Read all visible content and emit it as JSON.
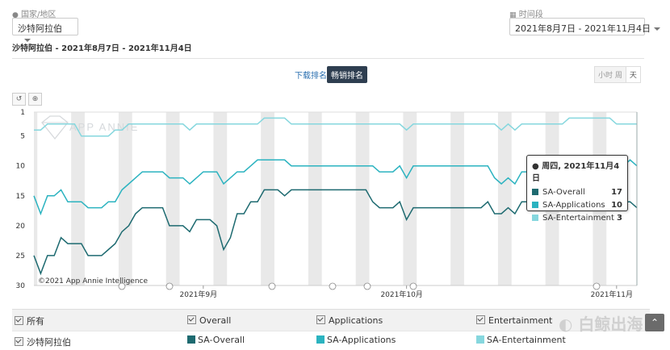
{
  "filters": {
    "country_label": "国家/地区",
    "country_value": "沙特阿拉伯",
    "period_label": "时间段",
    "period_value": "2021年8月7日 - 2021年11月4日"
  },
  "subtitle": "沙特阿拉伯 - 2021年8月7日 - 2021年11月4日",
  "tabs": {
    "downloads": "下载排名",
    "grossing": "畅销排名"
  },
  "granularity": {
    "hour": "小时",
    "week": "周",
    "day": "天"
  },
  "watermark": "APP ANNIE",
  "copyright": "©2021 App Annie Intelligence",
  "tooltip": {
    "title": "周四, 2021年11月4日",
    "rows": [
      {
        "name": "SA-Overall",
        "value": "17",
        "color": "#1d6a70"
      },
      {
        "name": "SA-Applications",
        "value": "10",
        "color": "#2bb3c0"
      },
      {
        "name": "SA-Entertainment",
        "value": "3",
        "color": "#86d7de"
      }
    ]
  },
  "legend": {
    "all": "所有",
    "country": "沙特阿拉伯",
    "groups": [
      "Overall",
      "Applications",
      "Entertainment"
    ],
    "series": [
      "SA-Overall",
      "SA-Applications",
      "SA-Entertainment"
    ]
  },
  "logo_text": "白鲸出海",
  "chart_data": {
    "type": "line",
    "y_reversed": true,
    "ylim": [
      1,
      30
    ],
    "y_ticks": [
      "1",
      "5",
      "10",
      "15",
      "20",
      "25",
      "30"
    ],
    "x_ticks": [
      "2021年9月",
      "2021年10月",
      "2021年11月"
    ],
    "x": [
      "2021-08-07",
      "2021-08-08",
      "2021-08-09",
      "2021-08-10",
      "2021-08-11",
      "2021-08-12",
      "2021-08-13",
      "2021-08-14",
      "2021-08-15",
      "2021-08-16",
      "2021-08-17",
      "2021-08-18",
      "2021-08-19",
      "2021-08-20",
      "2021-08-21",
      "2021-08-22",
      "2021-08-23",
      "2021-08-24",
      "2021-08-25",
      "2021-08-26",
      "2021-08-27",
      "2021-08-28",
      "2021-08-29",
      "2021-08-30",
      "2021-08-31",
      "2021-09-01",
      "2021-09-02",
      "2021-09-03",
      "2021-09-04",
      "2021-09-05",
      "2021-09-06",
      "2021-09-07",
      "2021-09-08",
      "2021-09-09",
      "2021-09-10",
      "2021-09-11",
      "2021-09-12",
      "2021-09-13",
      "2021-09-14",
      "2021-09-15",
      "2021-09-16",
      "2021-09-17",
      "2021-09-18",
      "2021-09-19",
      "2021-09-20",
      "2021-09-21",
      "2021-09-22",
      "2021-09-23",
      "2021-09-24",
      "2021-09-25",
      "2021-09-26",
      "2021-09-27",
      "2021-09-28",
      "2021-09-29",
      "2021-09-30",
      "2021-10-01",
      "2021-10-02",
      "2021-10-03",
      "2021-10-04",
      "2021-10-05",
      "2021-10-06",
      "2021-10-07",
      "2021-10-08",
      "2021-10-09",
      "2021-10-10",
      "2021-10-11",
      "2021-10-12",
      "2021-10-13",
      "2021-10-14",
      "2021-10-15",
      "2021-10-16",
      "2021-10-17",
      "2021-10-18",
      "2021-10-19",
      "2021-10-20",
      "2021-10-21",
      "2021-10-22",
      "2021-10-23",
      "2021-10-24",
      "2021-10-25",
      "2021-10-26",
      "2021-10-27",
      "2021-10-28",
      "2021-10-29",
      "2021-10-30",
      "2021-10-31",
      "2021-11-01",
      "2021-11-02",
      "2021-11-03",
      "2021-11-04"
    ],
    "series": [
      {
        "name": "SA-Overall",
        "color": "#1d6a70",
        "values": [
          25,
          28,
          25,
          25,
          22,
          23,
          23,
          23,
          25,
          25,
          25,
          24,
          23,
          21,
          20,
          18,
          17,
          17,
          17,
          17,
          20,
          20,
          20,
          21,
          19,
          19,
          19,
          20,
          24,
          22,
          18,
          18,
          16,
          16,
          14,
          14,
          14,
          15,
          14,
          14,
          14,
          14,
          14,
          14,
          14,
          14,
          14,
          14,
          14,
          14,
          16,
          17,
          17,
          17,
          16,
          19,
          17,
          17,
          17,
          17,
          17,
          17,
          17,
          17,
          17,
          17,
          17,
          16,
          18,
          18,
          17,
          18,
          16,
          16,
          15,
          16,
          16,
          16,
          16,
          16,
          16,
          16,
          16,
          16,
          16,
          16,
          16,
          16,
          16,
          17
        ]
      },
      {
        "name": "SA-Applications",
        "color": "#2bb3c0",
        "values": [
          15,
          18,
          15,
          15,
          14,
          16,
          16,
          16,
          17,
          17,
          17,
          16,
          16,
          14,
          13,
          12,
          11,
          11,
          11,
          11,
          12,
          12,
          12,
          13,
          12,
          11,
          11,
          11,
          13,
          12,
          11,
          11,
          10,
          9,
          9,
          9,
          9,
          9,
          10,
          10,
          10,
          10,
          10,
          10,
          10,
          10,
          10,
          10,
          10,
          10,
          10,
          11,
          11,
          11,
          10,
          12,
          10,
          10,
          10,
          10,
          10,
          10,
          10,
          10,
          10,
          10,
          10,
          10,
          12,
          13,
          12,
          13,
          11,
          11,
          10,
          10,
          10,
          10,
          10,
          10,
          10,
          10,
          10,
          10,
          10,
          10,
          10,
          10,
          9,
          10
        ]
      },
      {
        "name": "SA-Entertainment",
        "color": "#86d7de",
        "values": [
          4,
          4,
          3,
          3,
          3,
          3,
          3,
          5,
          5,
          5,
          5,
          5,
          4,
          4,
          3,
          3,
          3,
          3,
          3,
          3,
          3,
          3,
          3,
          4,
          3,
          3,
          3,
          3,
          3,
          3,
          3,
          3,
          3,
          3,
          2,
          2,
          2,
          2,
          3,
          3,
          3,
          3,
          3,
          3,
          3,
          3,
          3,
          3,
          3,
          3,
          3,
          3,
          3,
          3,
          3,
          4,
          3,
          3,
          3,
          3,
          3,
          3,
          3,
          3,
          3,
          3,
          3,
          3,
          3,
          4,
          3,
          4,
          3,
          3,
          3,
          3,
          3,
          3,
          3,
          2,
          2,
          2,
          2,
          2,
          2,
          2,
          3,
          3,
          3,
          3
        ]
      }
    ]
  }
}
